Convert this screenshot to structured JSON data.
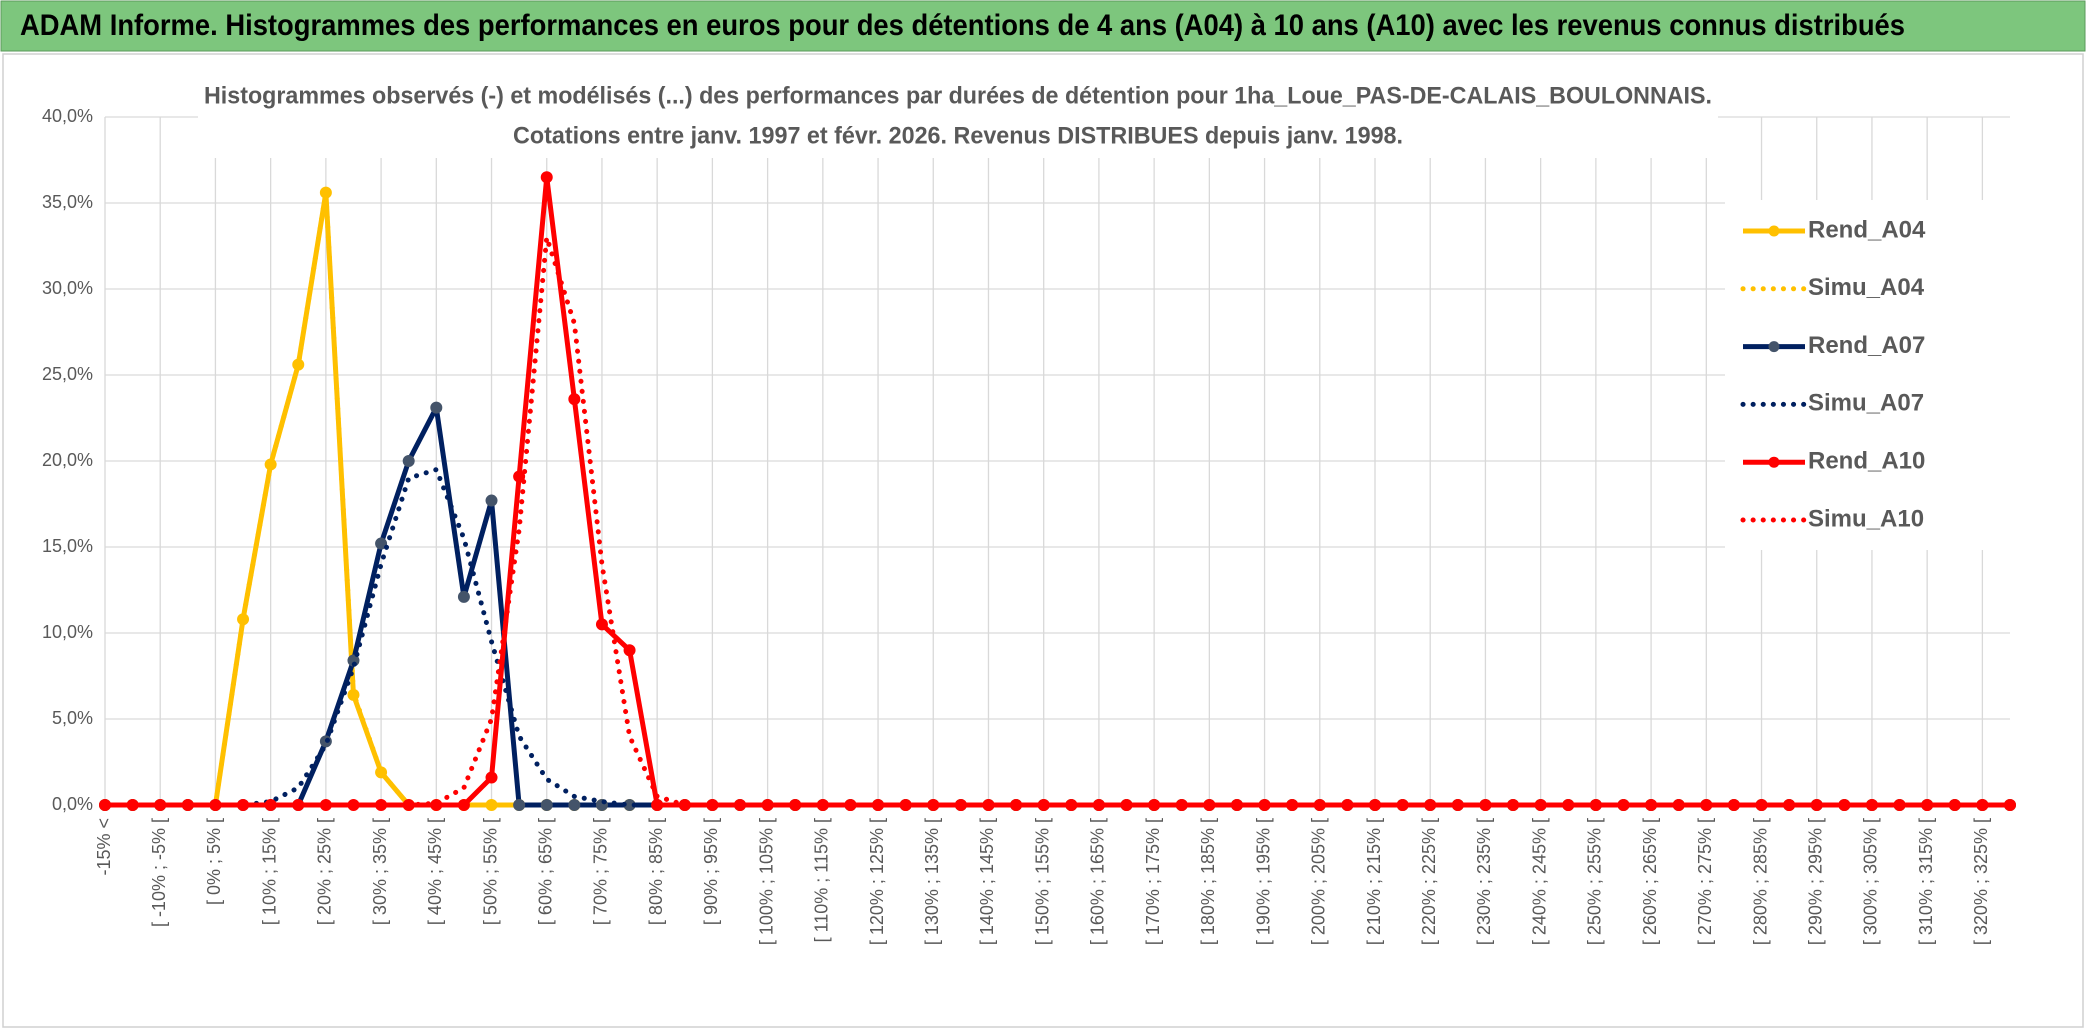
{
  "chart_data": {
    "type": "line",
    "header": "ADAM Informe. Histogrammes des performances en euros pour des détentions de 4 ans (A04) à 10 ans (A10) avec les revenus connus distribués",
    "title": "Histogrammes observés (-) et modélisés (...) des performances par durées de détention pour 1ha_Loue_PAS-DE-CALAIS_BOULONNAIS.",
    "subtitle": "Cotations entre janv. 1997 et févr. 2026. Revenus DISTRIBUES depuis janv. 1998.",
    "categories": [
      "-15% <",
      null,
      "[ -10% ; -5% [",
      null,
      "[ 0% ; 5% [",
      null,
      "[ 10% ; 15% [",
      null,
      "[ 20% ; 25% [",
      null,
      "[ 30% ; 35% [",
      null,
      "[ 40% ; 45% [",
      null,
      "[ 50% ; 55% [",
      null,
      "[ 60% ; 65% [",
      null,
      "[ 70% ; 75% [",
      null,
      "[ 80% ; 85% [",
      null,
      "[ 90% ; 95% [",
      null,
      "[ 100% ; 105% [",
      null,
      "[ 110% ; 115% [",
      null,
      "[ 120% ; 125% [",
      null,
      "[ 130% ; 135% [",
      null,
      "[ 140% ; 145% [",
      null,
      "[ 150% ; 155% [",
      null,
      "[ 160% ; 165% [",
      null,
      "[ 170% ; 175% [",
      null,
      "[ 180% ; 185% [",
      null,
      "[ 190% ; 195% [",
      null,
      "[ 200% ; 205% [",
      null,
      "[ 210% ; 215% [",
      null,
      "[ 220% ; 225% [",
      null,
      "[ 230% ; 235% [",
      null,
      "[ 240% ; 245% [",
      null,
      "[ 250% ; 255% [",
      null,
      "[ 260% ; 265% [",
      null,
      "[ 270% ; 275% [",
      null,
      "[ 280% ; 285% [",
      null,
      "[ 290% ; 295% [",
      null,
      "[ 300% ; 305% [",
      null,
      "[ 310% ; 315% [",
      null,
      "[ 320% ; 325% [",
      null
    ],
    "series": [
      {
        "name": "Rend_A04",
        "color": "#FFC000",
        "style": "solid",
        "markers": true,
        "values": [
          0,
          0,
          0,
          0,
          0,
          10.8,
          19.8,
          25.6,
          35.6,
          6.4,
          1.9,
          0,
          0,
          0,
          0,
          0,
          0,
          0,
          0,
          0,
          0,
          0,
          0,
          0,
          0,
          0,
          0,
          0,
          0,
          0,
          0,
          0,
          0,
          0,
          0,
          0,
          0,
          0,
          0,
          0,
          0,
          0,
          0,
          0,
          0,
          0,
          0,
          0,
          0,
          0,
          0,
          0,
          0,
          0,
          0,
          0,
          0,
          0,
          0,
          0,
          0,
          0,
          0,
          0,
          0,
          0,
          0,
          0,
          0,
          0
        ]
      },
      {
        "name": "Simu_A04",
        "color": "#FFC000",
        "style": "dotted",
        "markers": false,
        "values": [
          0,
          0,
          0,
          0,
          0,
          10.8,
          19.8,
          25.6,
          35.6,
          6.5,
          1.9,
          0,
          0,
          0,
          0,
          0,
          0,
          0,
          0,
          0,
          0,
          0,
          0,
          0,
          0,
          0,
          0,
          0,
          0,
          0,
          0,
          0,
          0,
          0,
          0,
          0,
          0,
          0,
          0,
          0,
          0,
          0,
          0,
          0,
          0,
          0,
          0,
          0,
          0,
          0,
          0,
          0,
          0,
          0,
          0,
          0,
          0,
          0,
          0,
          0,
          0,
          0,
          0,
          0,
          0,
          0,
          0,
          0,
          0,
          0
        ]
      },
      {
        "name": "Rend_A07",
        "color": "#002060",
        "style": "solid",
        "markers": true,
        "values": [
          0,
          0,
          0,
          0,
          0,
          0,
          0,
          0,
          3.7,
          8.4,
          15.2,
          20.0,
          23.1,
          12.1,
          17.7,
          0,
          0,
          0,
          0,
          0,
          0,
          0,
          0,
          0,
          0,
          0,
          0,
          0,
          0,
          0,
          0,
          0,
          0,
          0,
          0,
          0,
          0,
          0,
          0,
          0,
          0,
          0,
          0,
          0,
          0,
          0,
          0,
          0,
          0,
          0,
          0,
          0,
          0,
          0,
          0,
          0,
          0,
          0,
          0,
          0,
          0,
          0,
          0,
          0,
          0,
          0,
          0,
          0,
          0,
          0
        ]
      },
      {
        "name": "Simu_A07",
        "color": "#002060",
        "style": "dotted",
        "markers": false,
        "values": [
          0,
          0,
          0,
          0,
          0,
          0,
          0.2,
          1.0,
          3.5,
          8.0,
          14.0,
          19.0,
          19.5,
          15.5,
          9.5,
          4.0,
          1.5,
          0.5,
          0.2,
          0,
          0,
          0,
          0,
          0,
          0,
          0,
          0,
          0,
          0,
          0,
          0,
          0,
          0,
          0,
          0,
          0,
          0,
          0,
          0,
          0,
          0,
          0,
          0,
          0,
          0,
          0,
          0,
          0,
          0,
          0,
          0,
          0,
          0,
          0,
          0,
          0,
          0,
          0,
          0,
          0,
          0,
          0,
          0,
          0,
          0,
          0,
          0,
          0,
          0,
          0
        ]
      },
      {
        "name": "Rend_A10",
        "color": "#FF0000",
        "style": "solid",
        "markers": true,
        "values": [
          0,
          0,
          0,
          0,
          0,
          0,
          0,
          0,
          0,
          0,
          0,
          0,
          0,
          0,
          1.6,
          19.1,
          36.5,
          23.6,
          10.5,
          9.0,
          0,
          0,
          0,
          0,
          0,
          0,
          0,
          0,
          0,
          0,
          0,
          0,
          0,
          0,
          0,
          0,
          0,
          0,
          0,
          0,
          0,
          0,
          0,
          0,
          0,
          0,
          0,
          0,
          0,
          0,
          0,
          0,
          0,
          0,
          0,
          0,
          0,
          0,
          0,
          0,
          0,
          0,
          0,
          0,
          0,
          0,
          0,
          0,
          0,
          0
        ]
      },
      {
        "name": "Simu_A10",
        "color": "#FF0000",
        "style": "dotted",
        "markers": false,
        "values": [
          0,
          0,
          0,
          0,
          0,
          0,
          0,
          0,
          0,
          0,
          0,
          0,
          0.1,
          1.0,
          5.0,
          16.0,
          33.0,
          28.0,
          14.0,
          4.0,
          0.5,
          0,
          0,
          0,
          0,
          0,
          0,
          0,
          0,
          0,
          0,
          0,
          0,
          0,
          0,
          0,
          0,
          0,
          0,
          0,
          0,
          0,
          0,
          0,
          0,
          0,
          0,
          0,
          0,
          0,
          0,
          0,
          0,
          0,
          0,
          0,
          0,
          0,
          0,
          0,
          0,
          0,
          0,
          0,
          0,
          0,
          0,
          0,
          0,
          0
        ]
      }
    ],
    "ylim": [
      0,
      40
    ],
    "yticks": [
      {
        "value": 0,
        "label": "0,0%"
      },
      {
        "value": 5,
        "label": "5,0%"
      },
      {
        "value": 10,
        "label": "10,0%"
      },
      {
        "value": 15,
        "label": "15,0%"
      },
      {
        "value": 20,
        "label": "20,0%"
      },
      {
        "value": 25,
        "label": "25,0%"
      },
      {
        "value": 30,
        "label": "30,0%"
      },
      {
        "value": 35,
        "label": "35,0%"
      },
      {
        "value": 40,
        "label": "40,0%"
      }
    ],
    "grid": true,
    "legend": "right"
  }
}
